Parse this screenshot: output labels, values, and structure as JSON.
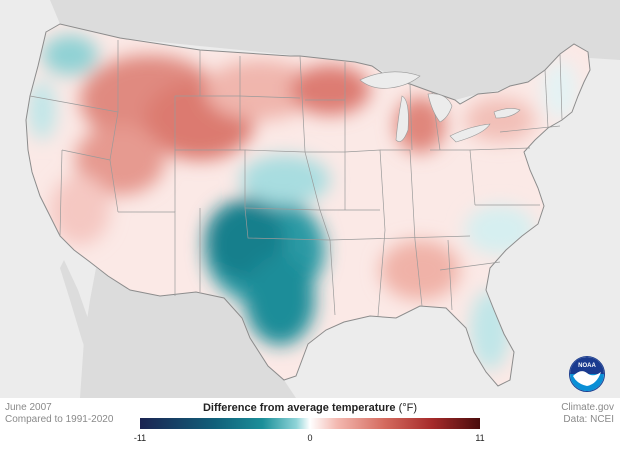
{
  "map": {
    "region": "Contiguous United States",
    "colors": {
      "ocean": "#ececec",
      "land_other": "#dcdcdc",
      "state_border": "#8c8c8c",
      "neutral": "#ffffff",
      "warm": "#d9675d",
      "cool": "#1a8c99",
      "cool_strong": "#0f6f7e"
    }
  },
  "meta": {
    "date_label": "June 2007",
    "baseline_label": "Compared to 1991-2020",
    "source_label": "Climate.gov",
    "data_label": "Data: NCEI"
  },
  "legend": {
    "title": "Difference from average temperature",
    "unit": "(°F)",
    "min_label": "-11",
    "mid_label": "0",
    "max_label": "11",
    "min": -11,
    "max": 11
  },
  "logo": {
    "text": "NOAA",
    "icon": "noaa-logo"
  }
}
